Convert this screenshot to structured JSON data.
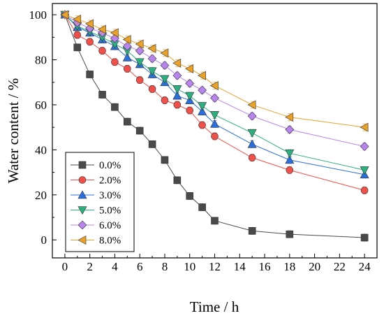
{
  "chart_data": {
    "type": "line",
    "title": "",
    "xlabel": "Time / h",
    "ylabel": "Water content / %",
    "xlim": [
      -1,
      25
    ],
    "ylim": [
      -8,
      105
    ],
    "xticks": [
      0,
      2,
      4,
      6,
      8,
      10,
      12,
      14,
      16,
      18,
      20,
      22,
      24
    ],
    "yticks": [
      0,
      20,
      40,
      60,
      80,
      100
    ],
    "x": [
      0,
      1,
      2,
      3,
      4,
      5,
      6,
      7,
      8,
      9,
      10,
      11,
      12,
      15,
      18,
      24
    ],
    "grid": false,
    "legend": "bottom-left",
    "series": [
      {
        "name": "0.0%",
        "color": "#4a4a4a",
        "marker": "square",
        "values": [
          100,
          85.5,
          73.5,
          64.5,
          59,
          52.5,
          48.5,
          42.5,
          35.5,
          26.5,
          19.5,
          14.5,
          8.5,
          4,
          2.5,
          1
        ]
      },
      {
        "name": "2.0%",
        "color": "#f0504a",
        "marker": "circle",
        "values": [
          100,
          91,
          88,
          84,
          79,
          76,
          71,
          67,
          62,
          60,
          57.5,
          51,
          46,
          36.5,
          31,
          22
        ]
      },
      {
        "name": "3.0%",
        "color": "#2a6fdb",
        "marker": "triangle-up",
        "values": [
          100,
          94.5,
          92,
          89,
          86,
          81,
          78,
          73.5,
          70,
          64,
          62,
          57,
          51.5,
          42.5,
          35.5,
          29
        ]
      },
      {
        "name": "5.0%",
        "color": "#2db07f",
        "marker": "triangle-down",
        "values": [
          100,
          95,
          92.5,
          90,
          87,
          84,
          79,
          75,
          71.5,
          67,
          64,
          59.5,
          55.5,
          47.5,
          38.5,
          31
        ]
      },
      {
        "name": "6.0%",
        "color": "#b884ee",
        "marker": "diamond",
        "values": [
          100,
          96.5,
          94,
          92,
          89.5,
          86,
          84,
          80.5,
          77.5,
          73,
          69.5,
          66.5,
          63,
          55,
          49,
          41.5
        ]
      },
      {
        "name": "8.0%",
        "color": "#eaa22a",
        "marker": "triangle-left",
        "values": [
          100,
          98,
          96,
          93.5,
          92,
          89,
          87,
          85,
          83,
          78.5,
          76,
          73,
          68.5,
          60,
          54.5,
          50
        ]
      }
    ]
  }
}
